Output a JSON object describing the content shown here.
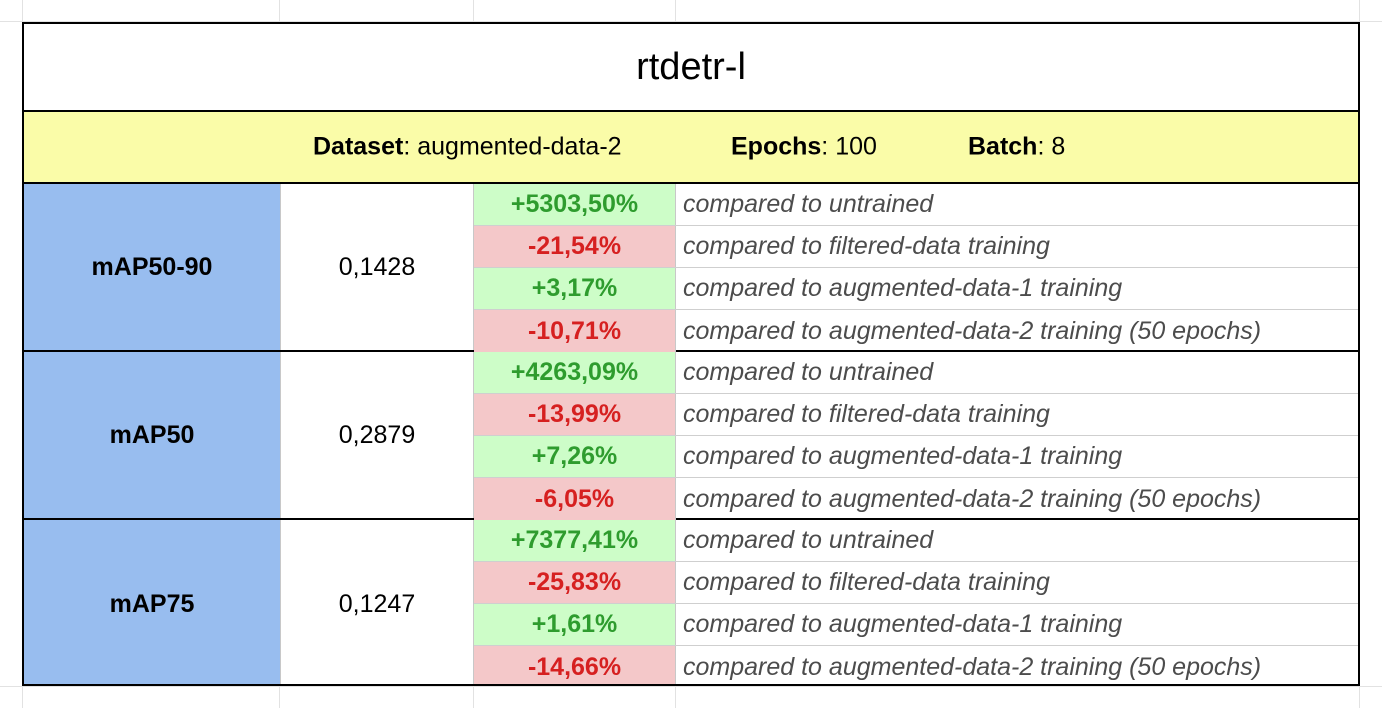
{
  "title": "rtdetr-l",
  "info": {
    "dataset_label": "Dataset",
    "dataset_value": "augmented-data-2",
    "epochs_label": "Epochs",
    "epochs_value": "100",
    "batch_label": "Batch",
    "batch_value": "8"
  },
  "metrics": [
    {
      "name": "mAP50-90",
      "value": "0,1428",
      "comparisons": [
        {
          "pct": "+5303,50%",
          "dir": "pos",
          "text": "compared to untrained"
        },
        {
          "pct": "-21,54%",
          "dir": "neg",
          "text": "compared to filtered-data training"
        },
        {
          "pct": "+3,17%",
          "dir": "pos",
          "text": "compared to augmented-data-1 training"
        },
        {
          "pct": "-10,71%",
          "dir": "neg",
          "text": "compared to augmented-data-2 training (50 epochs)"
        }
      ]
    },
    {
      "name": "mAP50",
      "value": "0,2879",
      "comparisons": [
        {
          "pct": "+4263,09%",
          "dir": "pos",
          "text": "compared to untrained"
        },
        {
          "pct": "-13,99%",
          "dir": "neg",
          "text": "compared to filtered-data training"
        },
        {
          "pct": "+7,26%",
          "dir": "pos",
          "text": "compared to augmented-data-1 training"
        },
        {
          "pct": "-6,05%",
          "dir": "neg",
          "text": "compared to augmented-data-2 training (50 epochs)"
        }
      ]
    },
    {
      "name": "mAP75",
      "value": "0,1247",
      "comparisons": [
        {
          "pct": "+7377,41%",
          "dir": "pos",
          "text": "compared to untrained"
        },
        {
          "pct": "-25,83%",
          "dir": "neg",
          "text": "compared to filtered-data training"
        },
        {
          "pct": "+1,61%",
          "dir": "pos",
          "text": "compared to augmented-data-1 training"
        },
        {
          "pct": "-14,66%",
          "dir": "neg",
          "text": "compared to augmented-data-2 training (50 epochs)"
        }
      ]
    }
  ],
  "colors": {
    "header_bg": "#fafca8",
    "metric_bg": "#98bdef",
    "positive_bg": "#cdfdc8",
    "positive_text": "#2e9c2e",
    "negative_bg": "#f4c8c9",
    "negative_text": "#d62020"
  }
}
